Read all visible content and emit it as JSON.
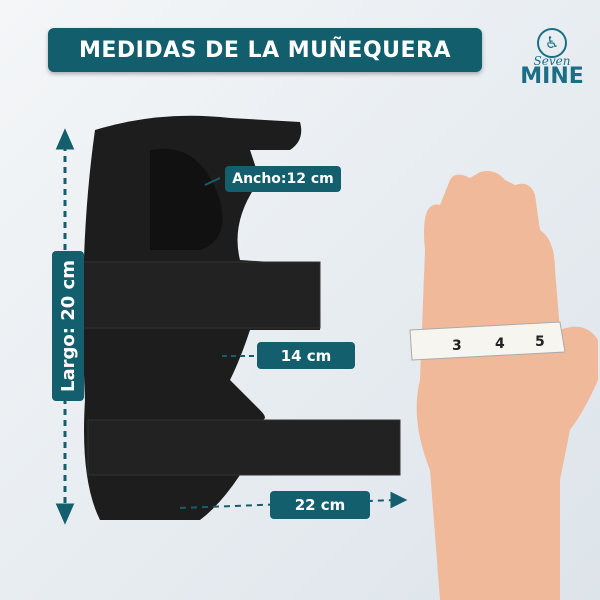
{
  "title": "MEDIDAS DE LA MUÑEQUERA",
  "logo": {
    "script": "Seven",
    "name": "MINE",
    "icon": "wheelchair-icon"
  },
  "labels": {
    "length": "Largo: 20 cm",
    "width": "Ancho:12 cm",
    "mid": "14 cm",
    "strap": "22 cm"
  },
  "tape": {
    "marks": [
      "3",
      "4",
      "5"
    ]
  },
  "colors": {
    "accent": "#135f6d",
    "brace": "#1c1c1c",
    "skin": "#f0b99a"
  }
}
